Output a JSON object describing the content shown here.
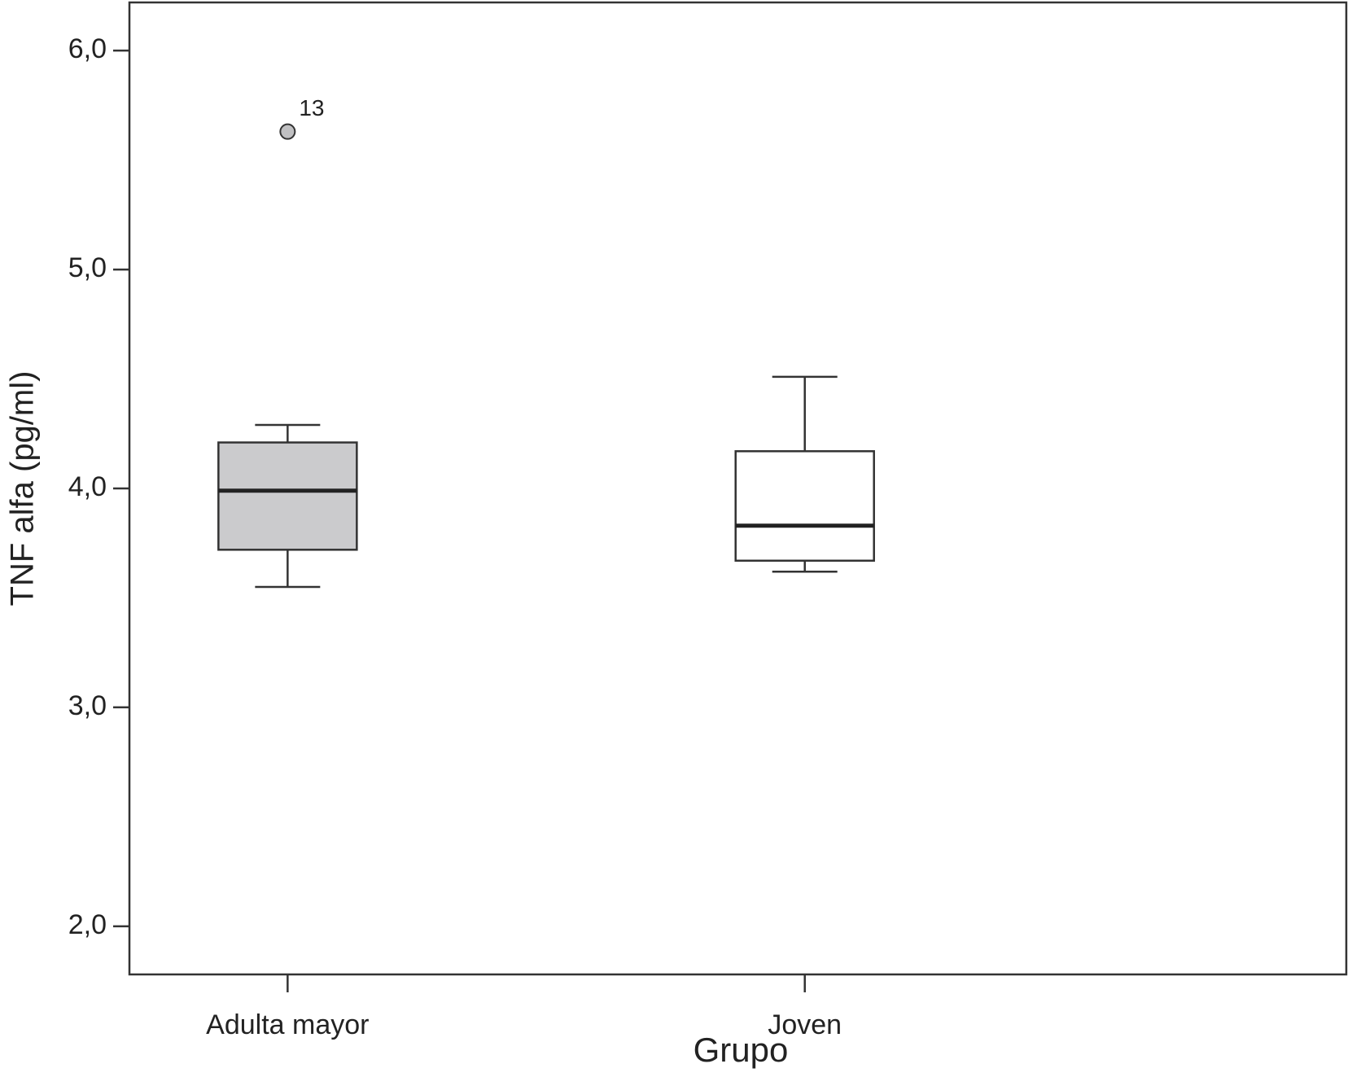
{
  "chart_data": {
    "type": "box",
    "y_label": "TNF alfa (pg/ml)",
    "x_label": "Grupo",
    "categories": [
      "Adulta mayor",
      "Joven"
    ],
    "boxes": [
      {
        "whisker_low": 3.55,
        "q1": 3.72,
        "median": 3.99,
        "q3": 4.21,
        "whisker_high": 4.29,
        "fill": "#cbcbcd",
        "outliers": [
          {
            "value": 5.63,
            "label": "13"
          }
        ]
      },
      {
        "whisker_low": 3.62,
        "q1": 3.67,
        "median": 3.83,
        "q3": 4.17,
        "whisker_high": 4.51,
        "fill": "#ffffff",
        "outliers": []
      }
    ],
    "outlier_color": "#c0c0c2",
    "ylim": [
      1.78,
      6.22
    ],
    "yticks": [
      {
        "value": 2,
        "label": "2,0"
      },
      {
        "value": 3,
        "label": "3,0"
      },
      {
        "value": 4,
        "label": "4,0"
      },
      {
        "value": 5,
        "label": "5,0"
      },
      {
        "value": 6,
        "label": "6,0"
      }
    ]
  }
}
